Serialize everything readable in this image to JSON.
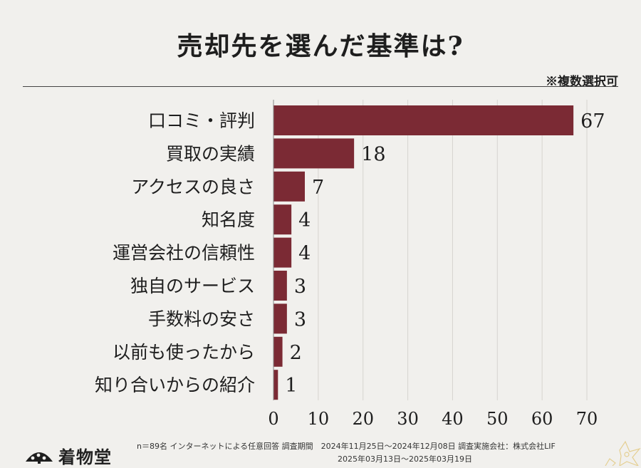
{
  "title": "売却先を選んだ基準は?",
  "subtitle": "※複数選択可",
  "colors": {
    "bar": "#7b2a34",
    "background": "#f1f0ed",
    "grid": "#d6d4d0"
  },
  "chart_data": {
    "type": "bar",
    "orientation": "horizontal",
    "title": "売却先を選んだ基準は?",
    "categories": [
      "口コミ・評判",
      "買取の実績",
      "アクセスの良さ",
      "知名度",
      "運営会社の信頼性",
      "独自のサービス",
      "手数料の安さ",
      "以前も使ったから",
      "知り合いからの紹介"
    ],
    "values": [
      67,
      18,
      7,
      4,
      4,
      3,
      3,
      2,
      1
    ],
    "xlim": [
      0,
      70
    ],
    "xticks": [
      0,
      10,
      20,
      30,
      40,
      50,
      60,
      70
    ],
    "xlabel": "",
    "ylabel": ""
  },
  "footer": {
    "brand": "着物堂",
    "line1": "n＝89名 インターネットによる任意回答 調査期間　2024年11月25日～2024年12月08日 調査実施会社：株式会社LIF",
    "line2": "2025年03月13日～2025年03月19日"
  },
  "icons": {
    "logo": "fan-logo-icon",
    "corner": "flower-decoration-icon"
  }
}
